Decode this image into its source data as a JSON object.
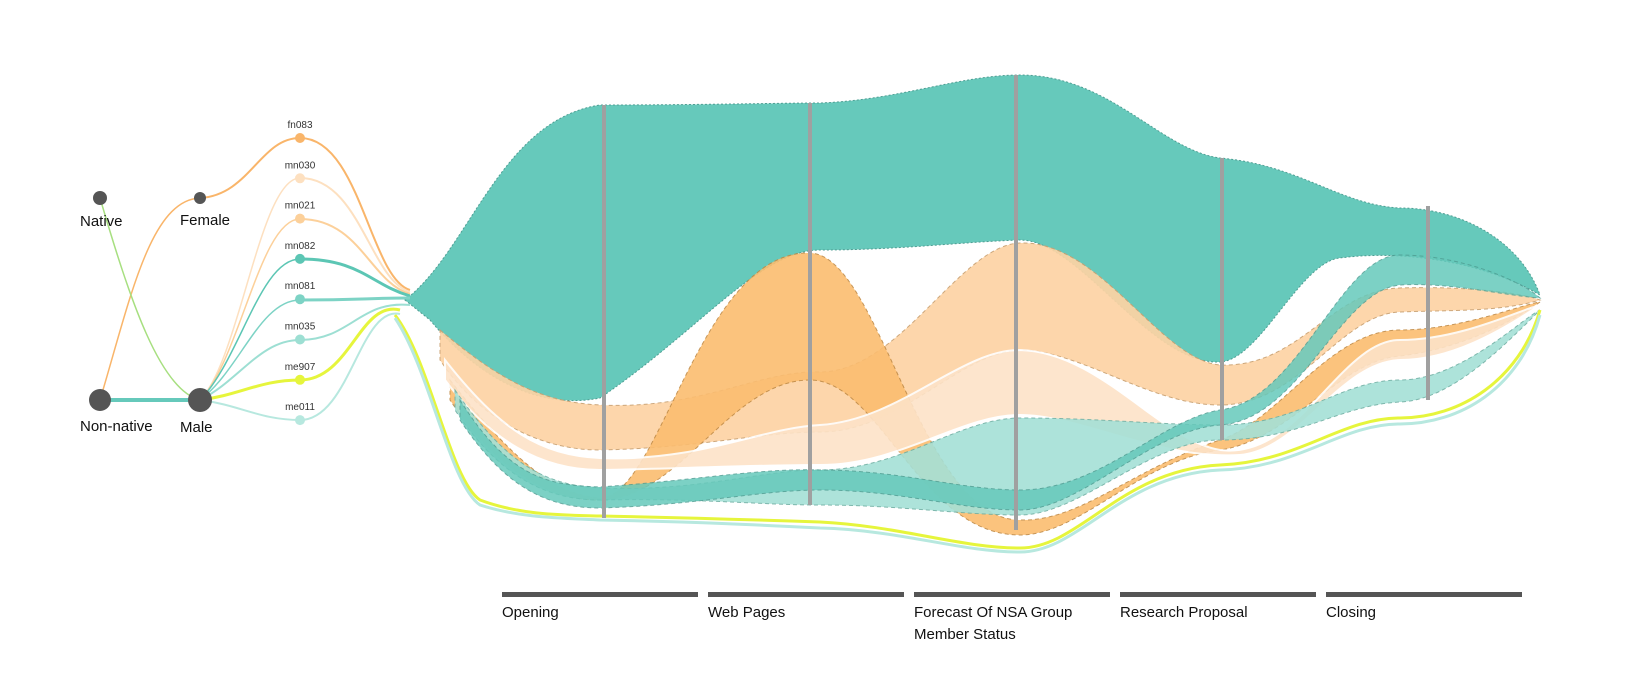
{
  "groups": [
    {
      "id": "native",
      "label": "Native"
    },
    {
      "id": "non-native",
      "label": "Non-native"
    },
    {
      "id": "female",
      "label": "Female"
    },
    {
      "id": "male",
      "label": "Male"
    }
  ],
  "speakers": [
    {
      "id": "fn083",
      "color": "#f9b56a"
    },
    {
      "id": "mn030",
      "color": "#fde0c0"
    },
    {
      "id": "mn021",
      "color": "#fcd09a"
    },
    {
      "id": "mn082",
      "color": "#5cc6b4"
    },
    {
      "id": "mn081",
      "color": "#7dd3c5"
    },
    {
      "id": "mn035",
      "color": "#9ddfd3"
    },
    {
      "id": "me907",
      "color": "#e6f53c"
    },
    {
      "id": "me011",
      "color": "#b7e8df"
    }
  ],
  "phases": [
    {
      "id": "opening",
      "label": "Opening"
    },
    {
      "id": "web-pages",
      "label": "Web Pages"
    },
    {
      "id": "forecast",
      "label": "Forecast Of NSA Group Member Status"
    },
    {
      "id": "research-proposal",
      "label": "Research Proposal"
    },
    {
      "id": "closing",
      "label": "Closing"
    }
  ],
  "colors": {
    "teal": "#66c9bb",
    "orange": "#fbbd70",
    "peach": "#fdd3a4",
    "light_peach": "#fde3c8",
    "light_teal": "#a5e0d6",
    "yellow": "#e6f53c",
    "node": "#555555",
    "axis": "#a0a0a0"
  }
}
